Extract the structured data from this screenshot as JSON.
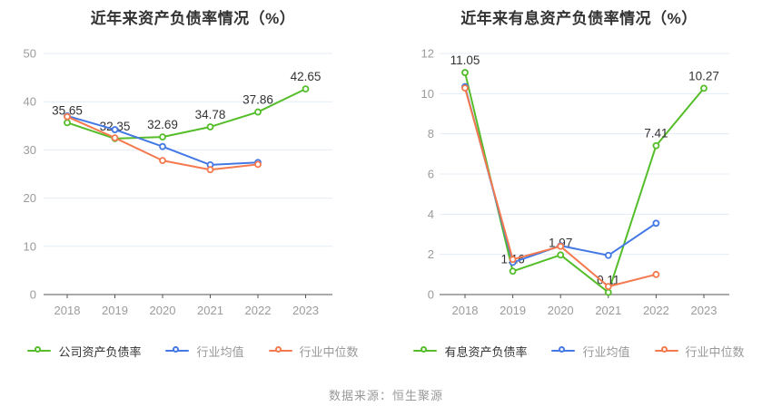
{
  "page": {
    "background": "#ffffff",
    "footer": "数据来源：恒生聚源"
  },
  "colors": {
    "company": "#55bd2a",
    "industry_mean": "#4478e4",
    "industry_median": "#f5794e",
    "grid_line": "#e4ebf6",
    "axis_line": "#555555",
    "tick_label": "#9b9b9b",
    "data_label": "#333333",
    "title": "#333333",
    "legend_active_text": "#333333",
    "legend_inactive_text": "#999999"
  },
  "chart_data": [
    {
      "type": "line",
      "title": "近年来资产负债率情况（%）",
      "categories": [
        "2018",
        "2019",
        "2020",
        "2021",
        "2022",
        "2023"
      ],
      "xlabel": "",
      "ylabel": "",
      "ylim": [
        0,
        50
      ],
      "yticks": [
        0,
        10,
        20,
        30,
        40,
        50
      ],
      "grid": "horizontal-only",
      "legend_position": "bottom",
      "marker": "hollow-circle",
      "series": [
        {
          "name": "公司资产负债率",
          "color_key": "company",
          "values": [
            35.65,
            32.35,
            32.69,
            34.78,
            37.86,
            42.65
          ],
          "point_labels": [
            "35.65",
            "32.35",
            "32.69",
            "34.78",
            "37.86",
            "42.65"
          ],
          "show_labels": true
        },
        {
          "name": "行业均值",
          "color_key": "industry_mean",
          "values": [
            37.05,
            34.2,
            30.7,
            26.9,
            27.4,
            null
          ],
          "show_labels": false
        },
        {
          "name": "行业中位数",
          "color_key": "industry_median",
          "values": [
            36.9,
            32.5,
            27.8,
            25.9,
            27.0,
            null
          ],
          "show_labels": false
        }
      ]
    },
    {
      "type": "line",
      "title": "近年来有息资产负债率情况（%）",
      "categories": [
        "2018",
        "2019",
        "2020",
        "2021",
        "2022",
        "2023"
      ],
      "xlabel": "",
      "ylabel": "",
      "ylim": [
        0,
        12
      ],
      "yticks": [
        0,
        2,
        4,
        6,
        8,
        10,
        12
      ],
      "grid": "horizontal-only",
      "legend_position": "bottom",
      "marker": "hollow-circle",
      "series": [
        {
          "name": "有息资产负债率",
          "color_key": "company",
          "values": [
            11.05,
            1.16,
            1.97,
            0.11,
            7.41,
            10.27
          ],
          "point_labels": [
            "11.05",
            "1.16",
            "1.97",
            "0.11",
            "7.41",
            "10.27"
          ],
          "show_labels": true
        },
        {
          "name": "行业均值",
          "color_key": "industry_mean",
          "values": [
            10.35,
            1.6,
            2.43,
            1.95,
            3.55,
            null
          ],
          "show_labels": false
        },
        {
          "name": "行业中位数",
          "color_key": "industry_median",
          "values": [
            10.28,
            1.75,
            2.4,
            0.4,
            1.0,
            null
          ],
          "show_labels": false
        }
      ]
    }
  ]
}
